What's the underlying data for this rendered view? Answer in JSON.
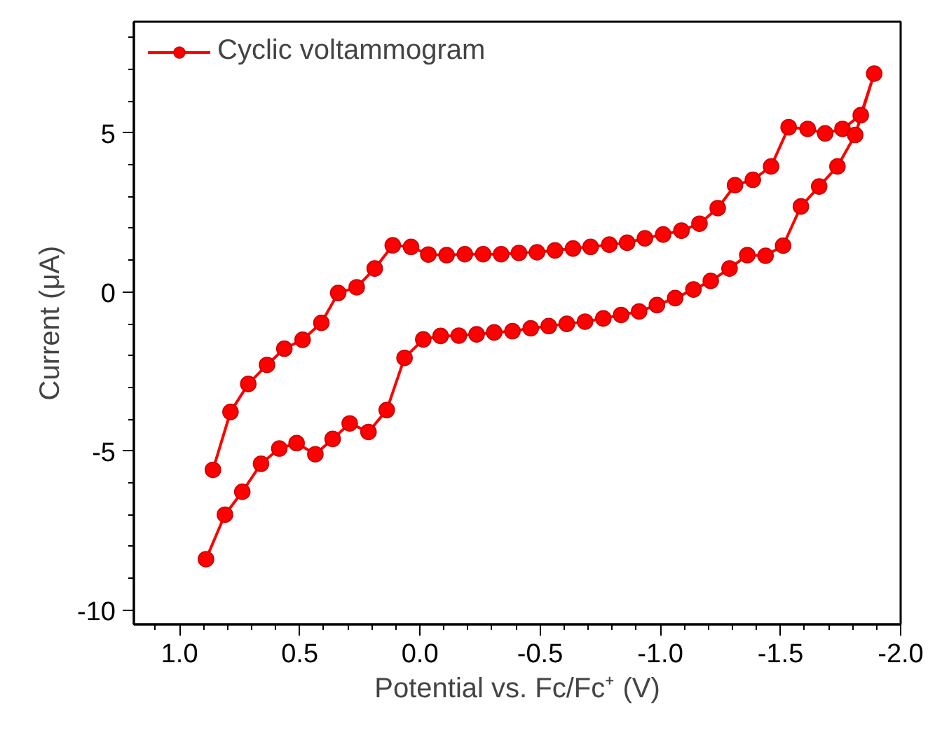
{
  "chart_data": {
    "type": "line",
    "xlabel": "Potential vs. Fc/Fc⁺ (V)",
    "ylabel": "Current (μA)",
    "xlim": [
      1.19,
      -2.0
    ],
    "xticks": [
      {
        "value": 1.0,
        "label": "1.0"
      },
      {
        "value": 0.5,
        "label": "0.5"
      },
      {
        "value": 0.0,
        "label": "0.0"
      },
      {
        "value": -0.5,
        "label": "-0.5"
      },
      {
        "value": -1.0,
        "label": "-1.0"
      },
      {
        "value": -1.5,
        "label": "-1.5"
      },
      {
        "value": -2.0,
        "label": "-2.0"
      }
    ],
    "ylim": [
      -10.45,
      8.5
    ],
    "yticks": [
      -10,
      -5,
      0,
      5
    ],
    "grid": false,
    "legend": "top left",
    "marker": "circle",
    "line_style": "solid",
    "series": [
      {
        "name": "Cyclic voltammogram",
        "color": "#ff0000",
        "x": [
          0.861,
          0.788,
          0.714,
          0.636,
          0.564,
          0.488,
          0.41,
          0.34,
          0.263,
          0.188,
          0.113,
          0.037,
          -0.035,
          -0.111,
          -0.187,
          -0.263,
          -0.338,
          -0.412,
          -0.487,
          -0.562,
          -0.637,
          -0.71,
          -0.788,
          -0.862,
          -0.936,
          -1.012,
          -1.088,
          -1.163,
          -1.239,
          -1.311,
          -1.385,
          -1.461,
          -1.534,
          -1.613,
          -1.686,
          -1.758,
          -1.834,
          -1.89,
          -1.811,
          -1.737,
          -1.661,
          -1.585,
          -1.511,
          -1.438,
          -1.362,
          -1.288,
          -1.21,
          -1.138,
          -1.062,
          -0.986,
          -0.912,
          -0.837,
          -0.763,
          -0.687,
          -0.611,
          -0.536,
          -0.461,
          -0.385,
          -0.309,
          -0.236,
          -0.162,
          -0.086,
          -0.014,
          0.064,
          0.138,
          0.214,
          0.292,
          0.363,
          0.435,
          0.513,
          0.585,
          0.661,
          0.739,
          0.811,
          0.89
        ],
        "values": [
          -5.59,
          -3.77,
          -2.89,
          -2.29,
          -1.78,
          -1.5,
          -0.97,
          -0.03,
          0.15,
          0.74,
          1.47,
          1.42,
          1.18,
          1.16,
          1.19,
          1.19,
          1.19,
          1.23,
          1.25,
          1.31,
          1.37,
          1.42,
          1.49,
          1.55,
          1.69,
          1.81,
          1.93,
          2.15,
          2.64,
          3.36,
          3.53,
          3.95,
          5.18,
          5.13,
          4.99,
          5.13,
          5.56,
          6.87,
          4.94,
          3.95,
          3.32,
          2.69,
          1.46,
          1.14,
          1.16,
          0.74,
          0.35,
          0.08,
          -0.19,
          -0.41,
          -0.61,
          -0.72,
          -0.83,
          -0.93,
          -1.0,
          -1.07,
          -1.14,
          -1.23,
          -1.27,
          -1.33,
          -1.37,
          -1.38,
          -1.49,
          -2.07,
          -3.71,
          -4.4,
          -4.13,
          -4.62,
          -5.1,
          -4.75,
          -4.92,
          -5.4,
          -6.28,
          -7.0,
          -8.4
        ]
      }
    ]
  }
}
